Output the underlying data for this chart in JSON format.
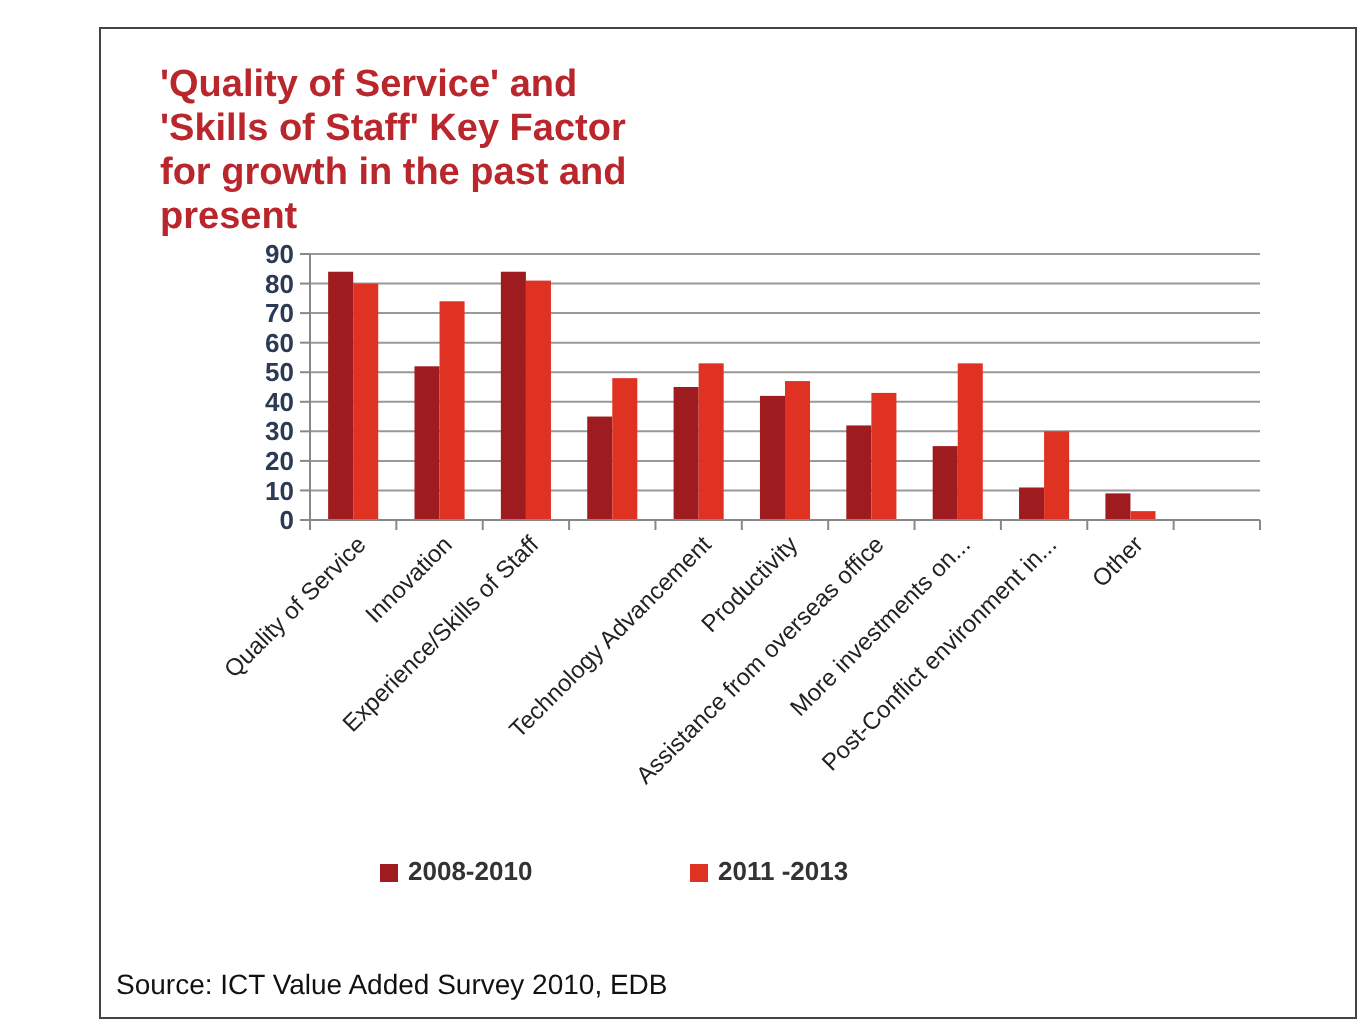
{
  "chart_data": {
    "type": "bar",
    "title": "'Quality of Service' and 'Skills of Staff' Key Factor for growth in the past and present",
    "categories": [
      "Quality of Service",
      "Innovation",
      "Experience/Skills of Staff",
      null,
      "Technology Advancement",
      "Productivity",
      "Assistance from overseas office",
      "More investments on...",
      "Post-Conflict environment in...",
      "Other",
      null
    ],
    "series": [
      {
        "name": "2008-2010",
        "color": "#9e1b1f",
        "values": [
          84,
          52,
          84,
          35,
          45,
          42,
          32,
          25,
          11,
          9,
          null
        ]
      },
      {
        "name": "2011 -2013",
        "color": "#e03222",
        "values": [
          80,
          74,
          81,
          48,
          53,
          47,
          43,
          53,
          30,
          3,
          null
        ]
      }
    ],
    "ylim": [
      0,
      90
    ],
    "yticks": [
      0,
      10,
      20,
      30,
      40,
      50,
      60,
      70,
      80,
      90
    ],
    "grid": "y",
    "legend": "bottom",
    "annotations": [
      "Source: ICT Value Added Survey 2010, EDB"
    ]
  }
}
